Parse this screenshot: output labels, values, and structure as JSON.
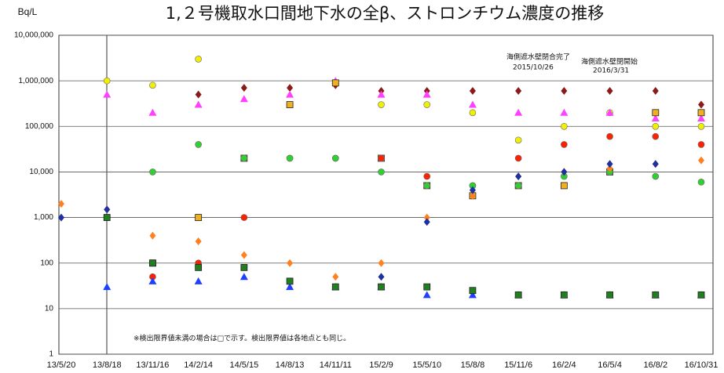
{
  "chart_data": {
    "type": "scatter",
    "title": "1,２号機取水口間地下水の全β、ストロンチウム濃度の推移",
    "y_label": "Bq/L",
    "log_scale": true,
    "grid": true,
    "categories": [
      "13/5/20",
      "13/8/18",
      "13/11/16",
      "14/2/14",
      "14/5/15",
      "14/8/13",
      "14/11/11",
      "15/2/9",
      "15/5/10",
      "15/8/8",
      "15/11/6",
      "16/2/4",
      "16/5/4",
      "16/8/2",
      "16/10/31"
    ],
    "ylim": [
      1,
      10000000
    ],
    "yticks": [
      1,
      10,
      100,
      {
        "value": 1000,
        "label": "1,000"
      },
      {
        "value": 10000,
        "label": "10,000"
      },
      {
        "value": 100000,
        "label": "100,000"
      },
      {
        "value": 1000000,
        "label": "1,000,000"
      },
      {
        "value": 10000000,
        "label": "10,000,000"
      }
    ],
    "annotations": [
      "海側遮水壁閉合完了",
      "2015/10/26",
      "海側遮水壁閉開始",
      "2016/3/31",
      "※検出限界値未満の場合は□で示す。検出限界値は各地点とも同じ。"
    ],
    "series": [
      {
        "color": "#8b1a1a",
        "marker": "diamond",
        "values": [
          null,
          null,
          null,
          500000,
          700000,
          700000,
          800000,
          600000,
          600000,
          600000,
          600000,
          600000,
          600000,
          600000,
          300000
        ]
      },
      {
        "color": "#f0f000",
        "marker": "circle",
        "values": [
          null,
          1000000,
          800000,
          3000000,
          null,
          null,
          null,
          300000,
          300000,
          200000,
          50000,
          100000,
          200000,
          100000,
          100000
        ]
      },
      {
        "color": "#ff40ff",
        "marker": "triangle",
        "values": [
          null,
          500000,
          200000,
          300000,
          400000,
          500000,
          1000000,
          500000,
          500000,
          300000,
          200000,
          200000,
          200000,
          150000,
          150000
        ]
      },
      {
        "color": "#f0b020",
        "marker": "square",
        "values": [
          null,
          null,
          100,
          1000,
          20000,
          300000,
          900000,
          20000,
          5000,
          3000,
          5000,
          5000,
          10000,
          200000,
          200000
        ]
      },
      {
        "color": "#ff2000",
        "marker": "circle",
        "values": [
          null,
          null,
          50,
          100,
          1000,
          20000,
          20000,
          20000,
          8000,
          5000,
          20000,
          40000,
          60000,
          60000,
          40000
        ]
      },
      {
        "color": "#30d030",
        "marker": "circle",
        "values": [
          null,
          1000,
          10000,
          40000,
          20000,
          20000,
          20000,
          10000,
          5000,
          5000,
          5000,
          8000,
          10000,
          8000,
          6000
        ]
      },
      {
        "color": "#ff8020",
        "marker": "diamond",
        "values": [
          2000,
          1500,
          400,
          300,
          150,
          100,
          50,
          100,
          1000,
          3000,
          8000,
          10000,
          12000,
          15000,
          18000
        ]
      },
      {
        "color": "#2030a0",
        "marker": "diamond",
        "values": [
          1000,
          1500,
          null,
          null,
          null,
          null,
          null,
          50,
          800,
          4000,
          8000,
          10000,
          15000,
          15000,
          null
        ]
      },
      {
        "color": "#2040ff",
        "marker": "triangle",
        "values": [
          null,
          30,
          40,
          40,
          50,
          30,
          30,
          30,
          20,
          20,
          20,
          20,
          20,
          20,
          20
        ]
      },
      {
        "color": "#208020",
        "marker": "square",
        "values": [
          null,
          1000,
          100,
          80,
          80,
          40,
          30,
          30,
          30,
          25,
          20,
          20,
          20,
          20,
          20
        ]
      }
    ]
  }
}
